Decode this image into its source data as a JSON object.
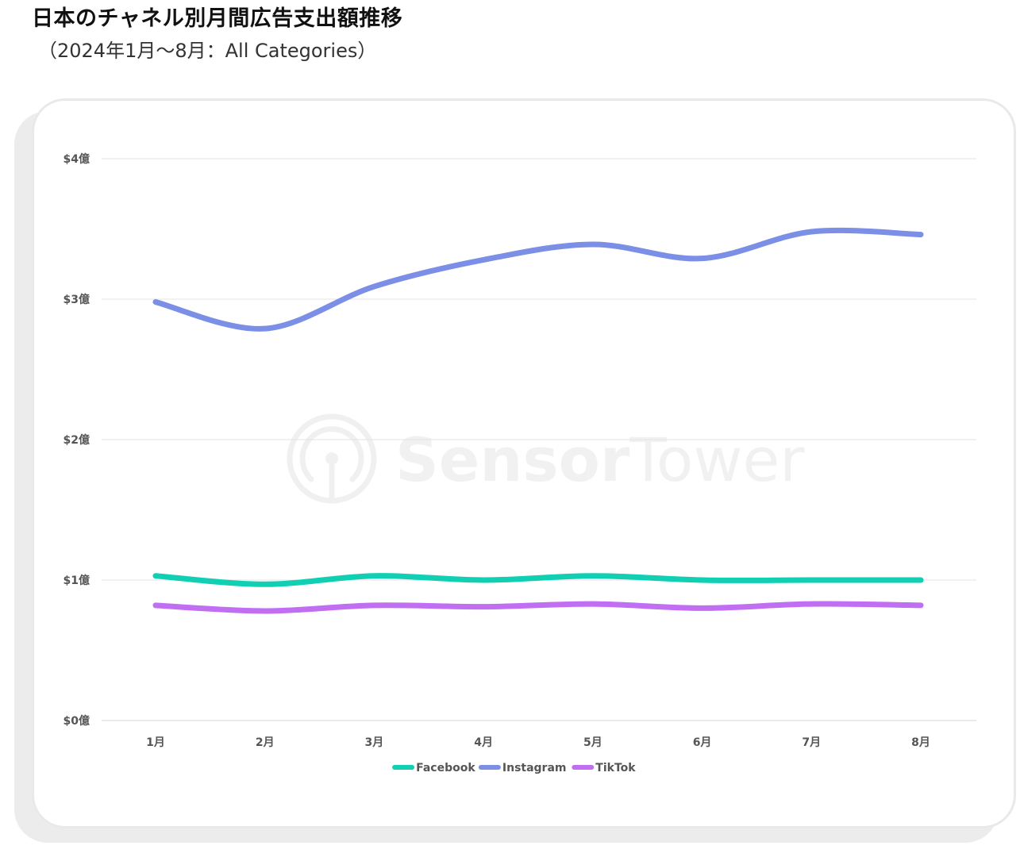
{
  "title": "日本のチャネル別月間広告支出額推移",
  "subtitle": "（2024年1月～8月：All Categories）",
  "watermark": {
    "brand_bold": "Sensor",
    "brand_light": "Tower",
    "logo_icon": "sensor-tower-logo-icon"
  },
  "chart_data": {
    "type": "line",
    "categories": [
      "1月",
      "2月",
      "3月",
      "4月",
      "5月",
      "6月",
      "7月",
      "8月"
    ],
    "series": [
      {
        "name": "Facebook",
        "color": "#10cfb2",
        "values": [
          1.03,
          0.97,
          1.03,
          1.0,
          1.03,
          1.0,
          1.0,
          1.0
        ]
      },
      {
        "name": "Instagram",
        "color": "#7b8fe6",
        "values": [
          2.98,
          2.79,
          3.09,
          3.28,
          3.39,
          3.29,
          3.48,
          3.46
        ]
      },
      {
        "name": "TikTok",
        "color": "#c06ef2",
        "values": [
          0.82,
          0.78,
          0.82,
          0.81,
          0.83,
          0.8,
          0.83,
          0.82
        ]
      }
    ],
    "yticks": [
      0,
      1,
      2,
      3,
      4
    ],
    "yticklabels": [
      "$0億",
      "$1億",
      "$2億",
      "$3億",
      "$4億"
    ],
    "ylim": [
      0,
      4
    ],
    "grid": true,
    "legend": "bottom-center",
    "xlabel": "",
    "ylabel": ""
  }
}
